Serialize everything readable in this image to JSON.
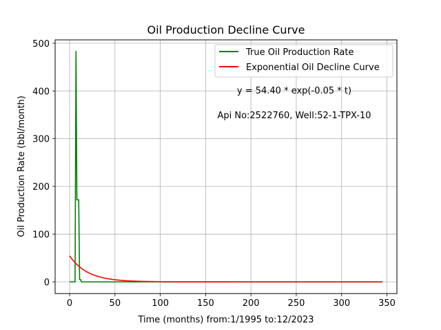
{
  "chart_data": {
    "type": "line",
    "title": "Oil Production Decline Curve",
    "xlabel": "Time (months) from:1/1995 to:12/2023",
    "ylabel": "Oil Production Rate (bbl/month)",
    "xlim": [
      -16,
      361
    ],
    "ylim": [
      -24.5,
      507
    ],
    "xticks": [
      0,
      50,
      100,
      150,
      200,
      250,
      300,
      350
    ],
    "yticks": [
      0,
      100,
      200,
      300,
      400,
      500
    ],
    "grid": true,
    "legend_position": "top-right",
    "annotations": [
      "y = 54.40 * exp(-0.05 * t)",
      "Api No:2522760, Well:52-1-TPX-10"
    ],
    "series": [
      {
        "name": "True Oil Production Rate",
        "color": "#008000",
        "x": [
          0,
          6,
          7,
          8,
          9,
          10,
          11,
          12,
          13,
          14,
          345
        ],
        "y": [
          0,
          0,
          483,
          172,
          172,
          172,
          5,
          5,
          0,
          0,
          0
        ]
      },
      {
        "name": "Exponential Oil Decline Curve",
        "color": "#ff0000",
        "model": {
          "a": 54.4,
          "b": -0.05,
          "t_start": 0,
          "t_end": 345
        }
      }
    ]
  }
}
